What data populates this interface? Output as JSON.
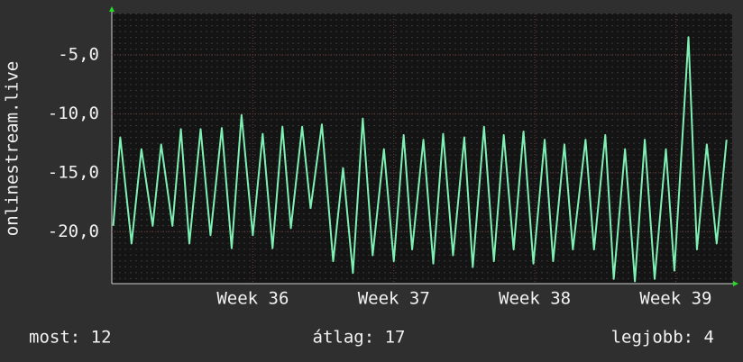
{
  "chart_data": {
    "type": "line",
    "y_label": "onlinestream.live",
    "footer": [
      "most: 12",
      "átlag: 17",
      "legjobb: 4"
    ],
    "xlim": [
      35.0,
      39.4
    ],
    "xticks": [
      {
        "value": 36,
        "label": "Week 36"
      },
      {
        "value": 37,
        "label": "Week 37"
      },
      {
        "value": 38,
        "label": "Week 38"
      },
      {
        "value": 39,
        "label": "Week 39"
      }
    ],
    "ylim": [
      -24.4,
      -1.5
    ],
    "yticks": [
      {
        "value": -20,
        "label": "-20,0"
      },
      {
        "value": -15,
        "label": "-15,0"
      },
      {
        "value": -10,
        "label": "-10,0"
      },
      {
        "value": -5,
        "label": "-5,0"
      }
    ],
    "grid": true,
    "x": [
      35.01,
      35.06,
      35.14,
      35.21,
      35.29,
      35.35,
      35.43,
      35.49,
      35.55,
      35.63,
      35.7,
      35.78,
      35.85,
      35.92,
      36.0,
      36.07,
      36.14,
      36.21,
      36.27,
      36.35,
      36.41,
      36.49,
      36.57,
      36.64,
      36.71,
      36.78,
      36.85,
      36.93,
      37.0,
      37.07,
      37.13,
      37.21,
      37.28,
      37.35,
      37.42,
      37.5,
      37.56,
      37.64,
      37.71,
      37.78,
      37.85,
      37.92,
      37.99,
      38.07,
      38.13,
      38.21,
      38.27,
      38.36,
      38.42,
      38.5,
      38.56,
      38.64,
      38.71,
      38.78,
      38.85,
      38.93,
      38.99,
      39.09,
      39.15,
      39.22,
      39.29,
      39.36
    ],
    "series": [
      {
        "color": "#7ff0b4",
        "values": [
          -19.5,
          -12,
          -21,
          -13,
          -19.5,
          -12.6,
          -19.5,
          -11.3,
          -21,
          -11.3,
          -20.3,
          -11.2,
          -21.4,
          -10.1,
          -20.3,
          -11.7,
          -21.4,
          -11.1,
          -19.7,
          -11.1,
          -18,
          -10.9,
          -22.5,
          -14.6,
          -23.5,
          -10.4,
          -22,
          -13,
          -22.5,
          -11.8,
          -21.5,
          -12.2,
          -22.7,
          -11.7,
          -22,
          -12,
          -23,
          -11.1,
          -22.5,
          -11.8,
          -21.5,
          -11.5,
          -22.7,
          -12.2,
          -22.5,
          -12.6,
          -21.5,
          -12.2,
          -21.5,
          -11.8,
          -24,
          -13,
          -24.2,
          -12.2,
          -24,
          -13,
          -23.3,
          -3.5,
          -21.5,
          -12.6,
          -21,
          -12.2
        ]
      }
    ]
  }
}
